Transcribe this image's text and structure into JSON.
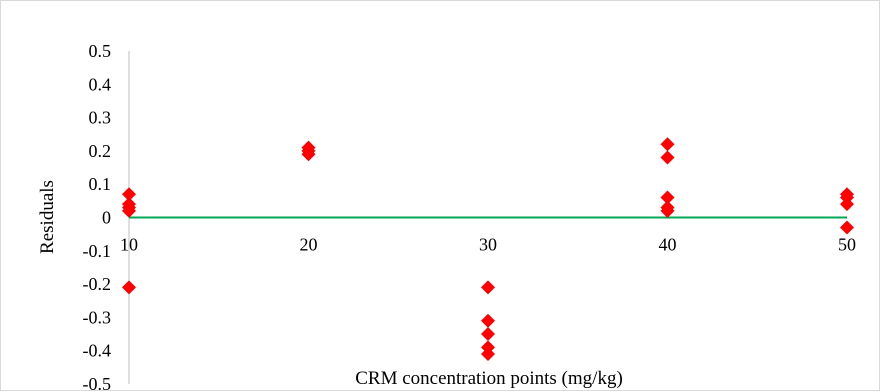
{
  "chart_data": {
    "type": "scatter",
    "title": "",
    "xlabel": "CRM concentration points (mg/kg)",
    "ylabel": "Residuals",
    "xlim": [
      10,
      50
    ],
    "ylim": [
      -0.5,
      0.5
    ],
    "x_ticks": [
      "10",
      "20",
      "30",
      "40",
      "50"
    ],
    "y_ticks": [
      "0.5",
      "0.4",
      "0.3",
      "0.2",
      "0.1",
      "0",
      "-0.1",
      "-0.2",
      "-0.3",
      "-0.4",
      "-0.5"
    ],
    "grid": false,
    "legend": "none",
    "zero_line_color": "#00a651",
    "marker": "diamond",
    "series": [
      {
        "color": "#ff0000",
        "points": [
          {
            "x": 10,
            "y": 0.07
          },
          {
            "x": 10,
            "y": 0.04
          },
          {
            "x": 10,
            "y": 0.03
          },
          {
            "x": 10,
            "y": 0.02
          },
          {
            "x": 10,
            "y": -0.21
          },
          {
            "x": 20,
            "y": 0.21
          },
          {
            "x": 20,
            "y": 0.2
          },
          {
            "x": 20,
            "y": 0.19
          },
          {
            "x": 30,
            "y": -0.21
          },
          {
            "x": 30,
            "y": -0.31
          },
          {
            "x": 30,
            "y": -0.35
          },
          {
            "x": 30,
            "y": -0.39
          },
          {
            "x": 30,
            "y": -0.41
          },
          {
            "x": 40,
            "y": 0.22
          },
          {
            "x": 40,
            "y": 0.18
          },
          {
            "x": 40,
            "y": 0.06
          },
          {
            "x": 40,
            "y": 0.03
          },
          {
            "x": 40,
            "y": 0.02
          },
          {
            "x": 50,
            "y": 0.07
          },
          {
            "x": 50,
            "y": 0.06
          },
          {
            "x": 50,
            "y": 0.04
          },
          {
            "x": 50,
            "y": -0.03
          }
        ]
      }
    ]
  }
}
